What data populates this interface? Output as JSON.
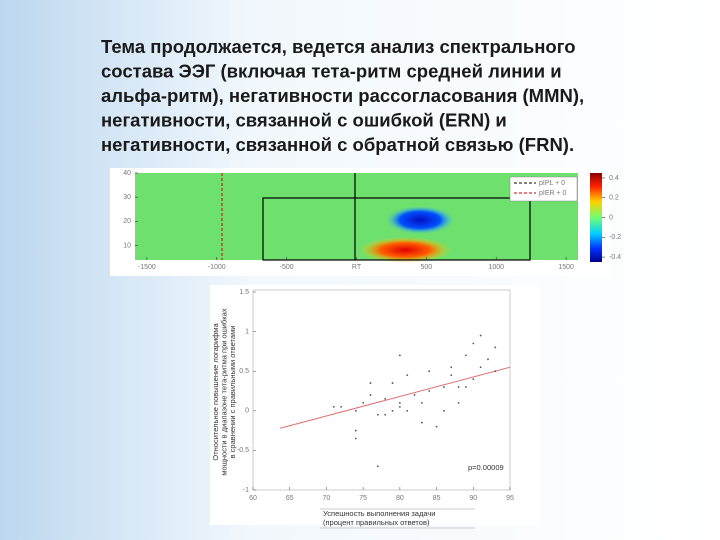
{
  "title_lines": [
    "Тема продолжается, ведется анализ спектрального",
    "состава ЭЭГ (включая тета-ритм средней линии и",
    "альфа-ритм), негативности рассогласования (MMN),",
    "негативности, связанной с ошибкой (ERN) и",
    "негативности, связанной с обратной связью (FRN)."
  ],
  "chart_data": [
    {
      "type": "heatmap",
      "xlim": [
        -1585,
        1585
      ],
      "xticks": [
        -1500,
        -1000,
        -500,
        {
          "value": 0,
          "label": "RT"
        },
        500,
        1000,
        1500
      ],
      "ylim": [
        4,
        40
      ],
      "yticks": [
        10,
        20,
        30,
        40
      ],
      "series": [
        {
          "name": "pIPL + 0",
          "color": "#000000"
        },
        {
          "name": "pIER + 0",
          "color": "#cc0000"
        }
      ],
      "colorbar": {
        "lim": [
          -0.45,
          0.45
        ],
        "ticks": [
          0.4,
          0.2,
          0,
          -0.2,
          -0.4
        ]
      }
    },
    {
      "type": "scatter",
      "x": [
        71,
        72,
        74,
        74,
        75,
        76,
        76,
        77,
        78,
        78,
        79,
        79,
        80,
        80,
        81,
        81,
        82,
        83,
        83,
        84,
        84,
        85,
        86,
        86,
        87,
        87,
        88,
        88,
        89,
        89,
        90,
        90,
        91,
        91,
        92,
        93,
        93,
        77,
        80,
        74
      ],
      "values": [
        0.05,
        0.05,
        -0.25,
        0.0,
        0.1,
        0.35,
        0.2,
        -0.05,
        -0.05,
        0.15,
        0.0,
        0.35,
        0.05,
        0.1,
        0.0,
        0.45,
        0.2,
        0.1,
        -0.15,
        0.25,
        0.5,
        -0.2,
        0.0,
        0.3,
        0.45,
        0.55,
        0.1,
        0.3,
        0.3,
        0.7,
        0.4,
        0.85,
        0.55,
        0.95,
        0.65,
        0.5,
        0.8,
        -0.7,
        0.7,
        -0.35
      ],
      "color": "#555555",
      "xlim": [
        60,
        95
      ],
      "xticks": [
        60,
        65,
        70,
        75,
        80,
        85,
        90,
        95
      ],
      "ylim": [
        -1,
        1.5
      ],
      "yticks": [
        -1,
        -0.5,
        0,
        0.5,
        1,
        1.5
      ],
      "fit": {
        "x": [
          63.7,
          95
        ],
        "values": [
          -0.22,
          0.55
        ],
        "color": "#e07070"
      },
      "annotation": "p=0.00009",
      "x_label": [
        "Успешность выполнения задачи",
        "(процент правильных ответов)"
      ],
      "y_label": [
        "Относительное повышение логарифма",
        "мощности в диапазоне тета-ритма при ошибках",
        "в сравнении с правильными ответами"
      ]
    }
  ]
}
